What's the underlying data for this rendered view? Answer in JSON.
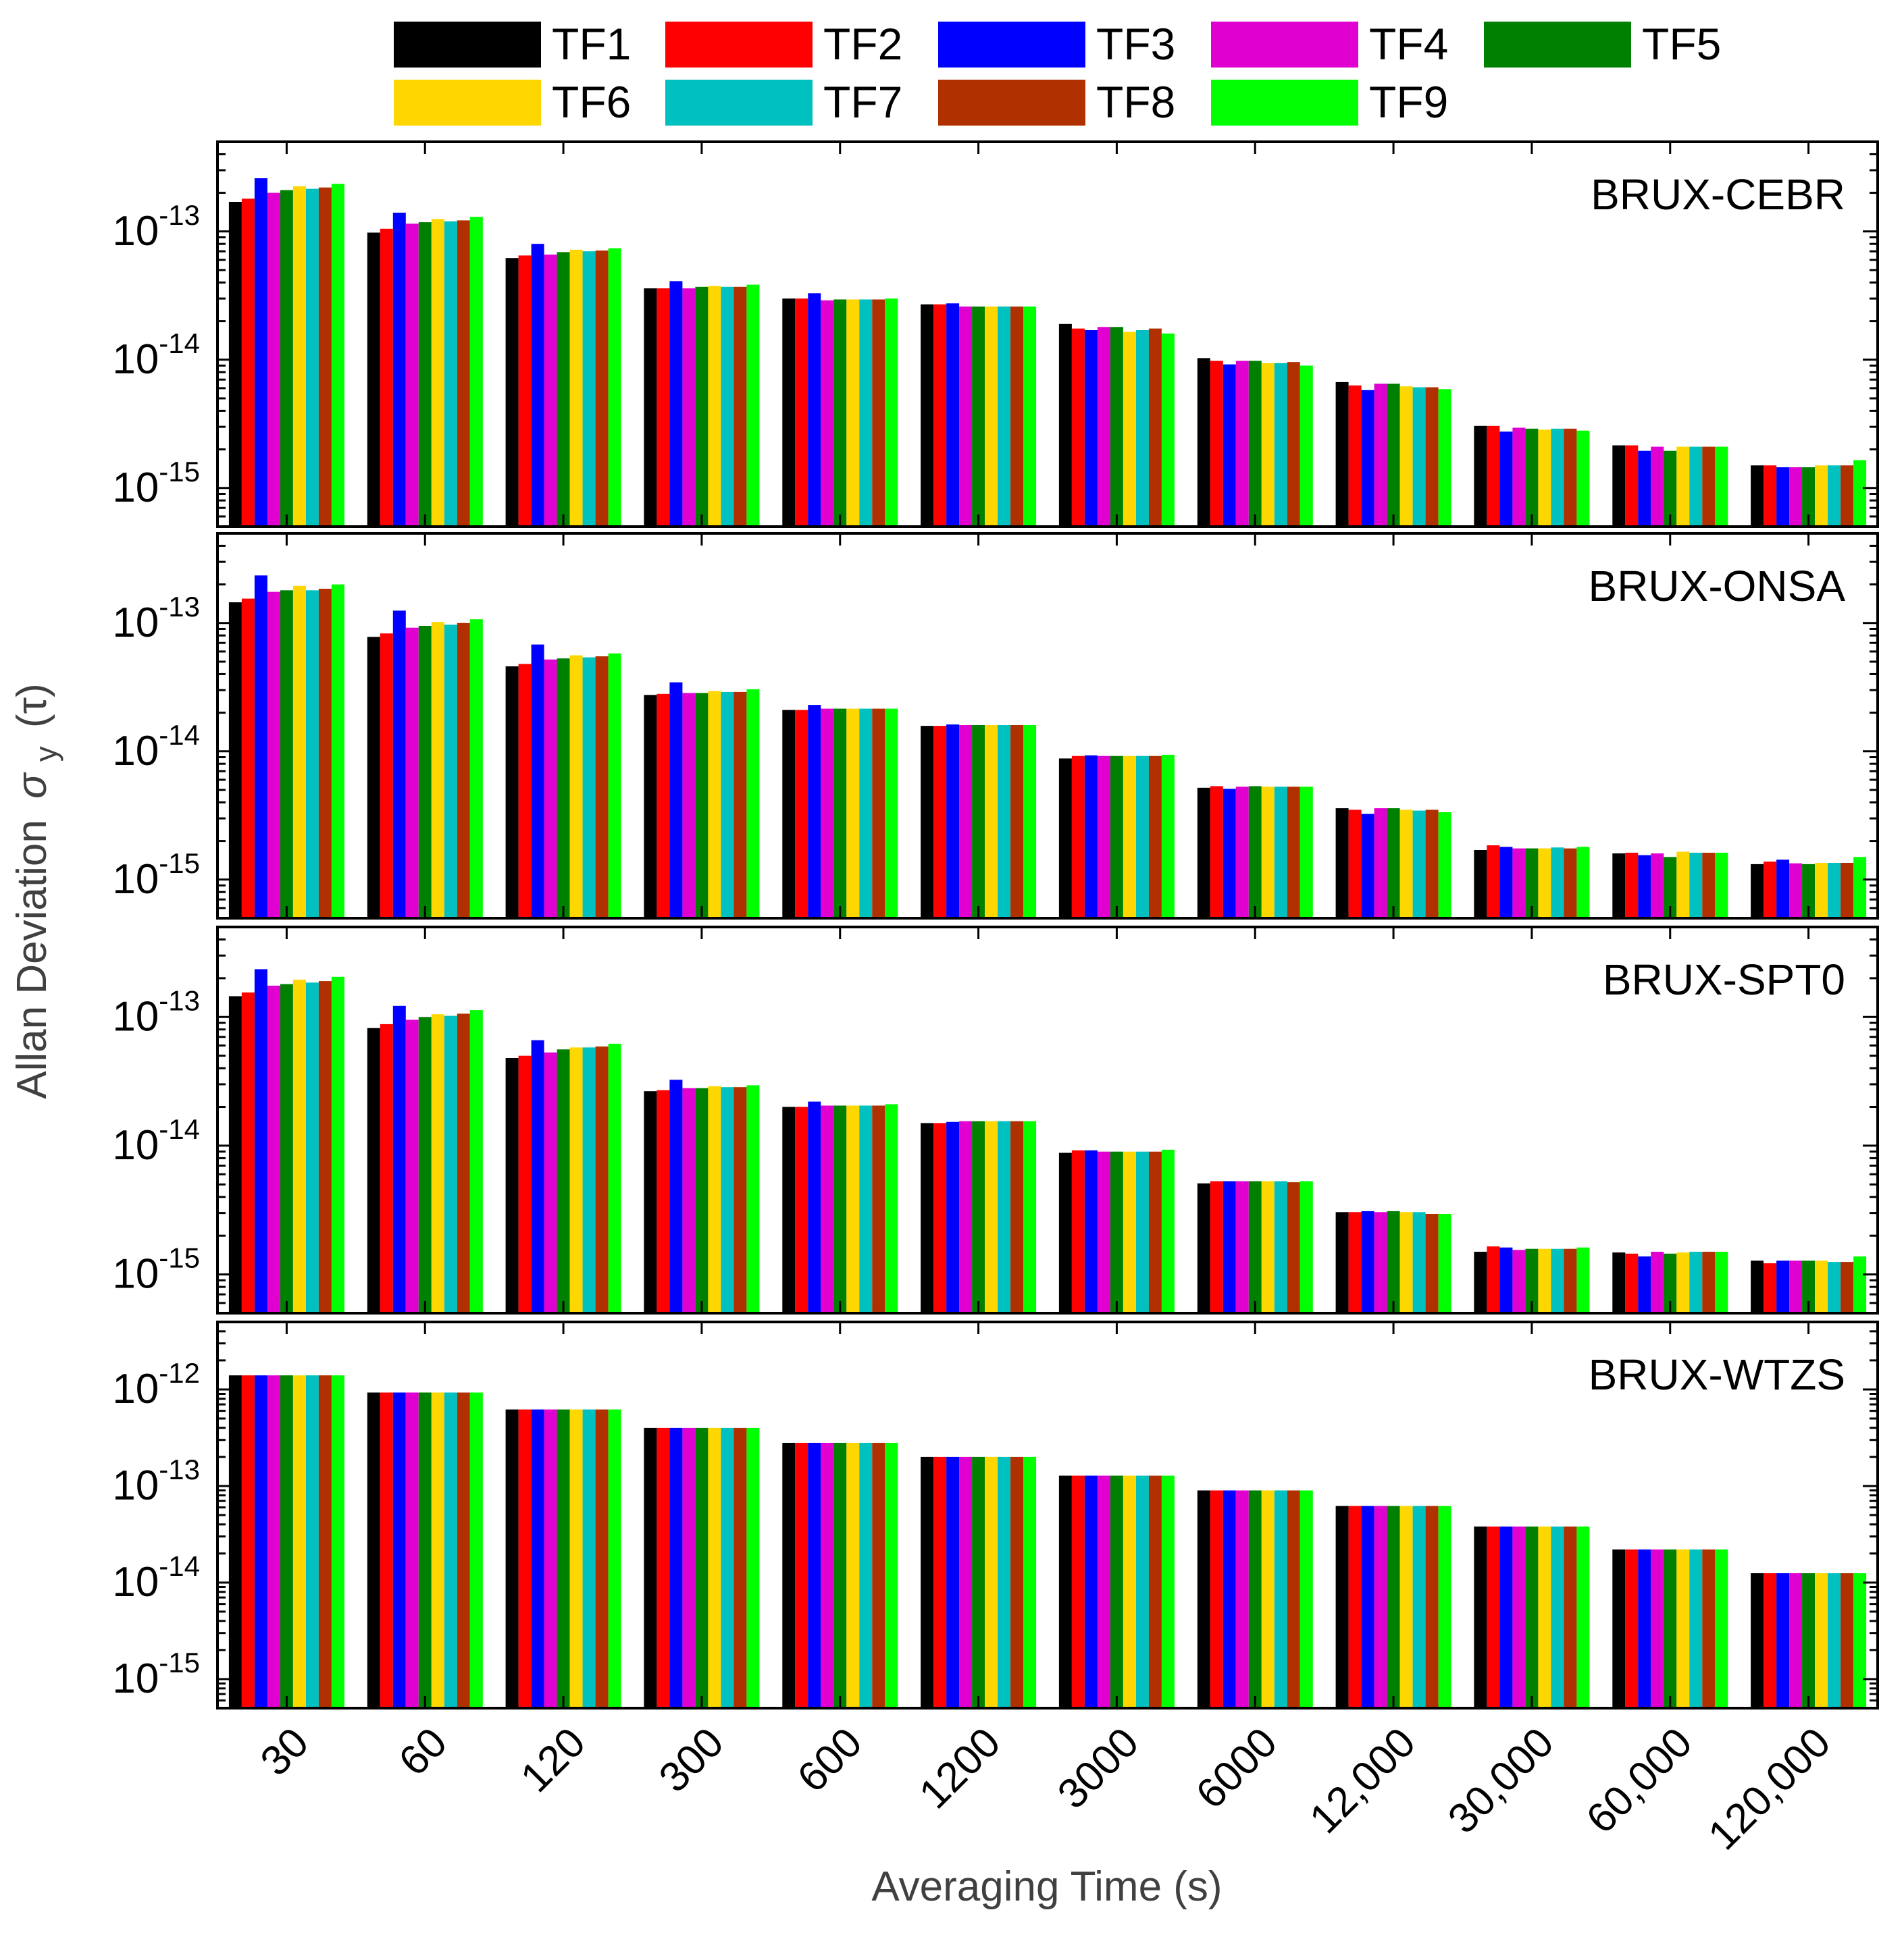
{
  "chart_data": {
    "type": "bar",
    "scale": "log",
    "xlabel": "Averaging Time (s)",
    "ylabel": "Allan Deviation",
    "ylabel_symbol": "σ",
    "ylabel_subscript": "y",
    "ylabel_arg": "(τ)",
    "categories": [
      "30",
      "60",
      "120",
      "300",
      "600",
      "1200",
      "3000",
      "6000",
      "12,000",
      "30,000",
      "60,000",
      "120,000"
    ],
    "series_names": [
      "TF1",
      "TF2",
      "TF3",
      "TF4",
      "TF5",
      "TF6",
      "TF7",
      "TF8",
      "TF9"
    ],
    "series_colors": [
      "#000000",
      "#ff0000",
      "#0000ff",
      "#e000d0",
      "#008000",
      "#ffd700",
      "#00c0c0",
      "#b03000",
      "#00ff00"
    ],
    "legend_layout": [
      [
        0,
        1,
        2,
        3,
        4
      ],
      [
        5,
        6,
        7,
        8
      ]
    ],
    "panels": [
      {
        "name": "BRUX-CEBR",
        "ylim": [
          5e-16,
          5e-13
        ],
        "ticks": [
          {
            "base": "10",
            "exp": "-13",
            "value": 1e-13
          },
          {
            "base": "10",
            "exp": "-14",
            "value": 1e-14
          },
          {
            "base": "10",
            "exp": "-15",
            "value": 1e-15
          }
        ],
        "values": [
          [
            1.7e-13,
            1.8e-13,
            2.6e-13,
            2e-13,
            2.1e-13,
            2.25e-13,
            2.15e-13,
            2.2e-13,
            2.35e-13
          ],
          [
            9.8e-14,
            1.05e-13,
            1.4e-13,
            1.15e-13,
            1.18e-13,
            1.25e-13,
            1.2e-13,
            1.22e-13,
            1.3e-13
          ],
          [
            6.2e-14,
            6.5e-14,
            8e-14,
            6.6e-14,
            6.9e-14,
            7.2e-14,
            7e-14,
            7.1e-14,
            7.4e-14
          ],
          [
            3.6e-14,
            3.6e-14,
            4.1e-14,
            3.6e-14,
            3.7e-14,
            3.75e-14,
            3.7e-14,
            3.7e-14,
            3.85e-14
          ],
          [
            3e-14,
            3e-14,
            3.3e-14,
            2.9e-14,
            2.95e-14,
            2.95e-14,
            2.95e-14,
            2.95e-14,
            3e-14
          ],
          [
            2.7e-14,
            2.7e-14,
            2.75e-14,
            2.6e-14,
            2.6e-14,
            2.6e-14,
            2.6e-14,
            2.6e-14,
            2.6e-14
          ],
          [
            1.9e-14,
            1.75e-14,
            1.7e-14,
            1.8e-14,
            1.8e-14,
            1.65e-14,
            1.7e-14,
            1.75e-14,
            1.6e-14
          ],
          [
            1.03e-14,
            9.8e-15,
            9.2e-15,
            9.8e-15,
            9.8e-15,
            9.4e-15,
            9.4e-15,
            9.6e-15,
            9e-15
          ],
          [
            6.7e-15,
            6.3e-15,
            5.8e-15,
            6.5e-15,
            6.5e-15,
            6.2e-15,
            6.1e-15,
            6.1e-15,
            5.9e-15
          ],
          [
            3.05e-15,
            3.05e-15,
            2.75e-15,
            2.95e-15,
            2.9e-15,
            2.85e-15,
            2.9e-15,
            2.9e-15,
            2.8e-15
          ],
          [
            2.15e-15,
            2.15e-15,
            1.95e-15,
            2.1e-15,
            1.95e-15,
            2.1e-15,
            2.1e-15,
            2.1e-15,
            2.1e-15
          ],
          [
            1.5e-15,
            1.5e-15,
            1.45e-15,
            1.45e-15,
            1.45e-15,
            1.5e-15,
            1.5e-15,
            1.5e-15,
            1.65e-15
          ]
        ]
      },
      {
        "name": "BRUX-ONSA",
        "ylim": [
          5e-16,
          5e-13
        ],
        "ticks": [
          {
            "base": "10",
            "exp": "-13",
            "value": 1e-13
          },
          {
            "base": "10",
            "exp": "-14",
            "value": 1e-14
          },
          {
            "base": "10",
            "exp": "-15",
            "value": 1e-15
          }
        ],
        "values": [
          [
            1.45e-13,
            1.55e-13,
            2.35e-13,
            1.75e-13,
            1.8e-13,
            1.95e-13,
            1.8e-13,
            1.85e-13,
            2e-13
          ],
          [
            7.8e-14,
            8.3e-14,
            1.25e-13,
            9.2e-14,
            9.5e-14,
            1.02e-13,
            9.7e-14,
            1e-13,
            1.07e-13
          ],
          [
            4.6e-14,
            4.8e-14,
            6.8e-14,
            5.2e-14,
            5.3e-14,
            5.6e-14,
            5.4e-14,
            5.5e-14,
            5.8e-14
          ],
          [
            2.75e-14,
            2.8e-14,
            3.45e-14,
            2.85e-14,
            2.85e-14,
            2.95e-14,
            2.9e-14,
            2.9e-14,
            3.05e-14
          ],
          [
            2.1e-14,
            2.1e-14,
            2.3e-14,
            2.15e-14,
            2.15e-14,
            2.15e-14,
            2.15e-14,
            2.15e-14,
            2.15e-14
          ],
          [
            1.58e-14,
            1.58e-14,
            1.62e-14,
            1.6e-14,
            1.6e-14,
            1.6e-14,
            1.6e-14,
            1.6e-14,
            1.6e-14
          ],
          [
            8.8e-15,
            9.2e-15,
            9.3e-15,
            9.2e-15,
            9.2e-15,
            9.2e-15,
            9.2e-15,
            9.2e-15,
            9.4e-15
          ],
          [
            5.2e-15,
            5.35e-15,
            5.1e-15,
            5.3e-15,
            5.35e-15,
            5.3e-15,
            5.3e-15,
            5.3e-15,
            5.3e-15
          ],
          [
            3.6e-15,
            3.5e-15,
            3.25e-15,
            3.6e-15,
            3.6e-15,
            3.5e-15,
            3.45e-15,
            3.5e-15,
            3.35e-15
          ],
          [
            1.7e-15,
            1.85e-15,
            1.8e-15,
            1.75e-15,
            1.75e-15,
            1.75e-15,
            1.78e-15,
            1.75e-15,
            1.8e-15
          ],
          [
            1.6e-15,
            1.62e-15,
            1.55e-15,
            1.6e-15,
            1.5e-15,
            1.65e-15,
            1.62e-15,
            1.62e-15,
            1.62e-15
          ],
          [
            1.32e-15,
            1.38e-15,
            1.43e-15,
            1.34e-15,
            1.32e-15,
            1.35e-15,
            1.35e-15,
            1.35e-15,
            1.5e-15
          ]
        ]
      },
      {
        "name": "BRUX-SPT0",
        "ylim": [
          5e-16,
          5e-13
        ],
        "ticks": [
          {
            "base": "10",
            "exp": "-13",
            "value": 1e-13
          },
          {
            "base": "10",
            "exp": "-14",
            "value": 1e-14
          },
          {
            "base": "10",
            "exp": "-15",
            "value": 1e-15
          }
        ],
        "values": [
          [
            1.45e-13,
            1.55e-13,
            2.35e-13,
            1.75e-13,
            1.8e-13,
            1.95e-13,
            1.85e-13,
            1.9e-13,
            2.05e-13
          ],
          [
            8.2e-14,
            8.8e-14,
            1.22e-13,
            9.5e-14,
            1e-13,
            1.05e-13,
            1.02e-13,
            1.06e-13,
            1.13e-13
          ],
          [
            4.8e-14,
            5e-14,
            6.6e-14,
            5.3e-14,
            5.6e-14,
            5.8e-14,
            5.8e-14,
            5.9e-14,
            6.2e-14
          ],
          [
            2.65e-14,
            2.7e-14,
            3.25e-14,
            2.8e-14,
            2.8e-14,
            2.9e-14,
            2.85e-14,
            2.85e-14,
            2.95e-14
          ],
          [
            2e-14,
            2e-14,
            2.2e-14,
            2.05e-14,
            2.05e-14,
            2.05e-14,
            2.05e-14,
            2.05e-14,
            2.1e-14
          ],
          [
            1.5e-14,
            1.5e-14,
            1.53e-14,
            1.55e-14,
            1.55e-14,
            1.55e-14,
            1.55e-14,
            1.55e-14,
            1.55e-14
          ],
          [
            8.8e-15,
            9.2e-15,
            9.2e-15,
            9e-15,
            9e-15,
            9e-15,
            9e-15,
            9e-15,
            9.3e-15
          ],
          [
            5.1e-15,
            5.3e-15,
            5.3e-15,
            5.3e-15,
            5.3e-15,
            5.3e-15,
            5.3e-15,
            5.2e-15,
            5.3e-15
          ],
          [
            3.05e-15,
            3.05e-15,
            3.1e-15,
            3.05e-15,
            3.1e-15,
            3.05e-15,
            3.05e-15,
            2.95e-15,
            2.95e-15
          ],
          [
            1.5e-15,
            1.65e-15,
            1.62e-15,
            1.55e-15,
            1.58e-15,
            1.58e-15,
            1.58e-15,
            1.58e-15,
            1.62e-15
          ],
          [
            1.48e-15,
            1.45e-15,
            1.38e-15,
            1.5e-15,
            1.45e-15,
            1.48e-15,
            1.5e-15,
            1.5e-15,
            1.5e-15
          ],
          [
            1.28e-15,
            1.22e-15,
            1.28e-15,
            1.28e-15,
            1.28e-15,
            1.28e-15,
            1.25e-15,
            1.25e-15,
            1.38e-15
          ]
        ]
      },
      {
        "name": "BRUX-WTZS",
        "ylim": [
          5e-16,
          5e-12
        ],
        "ticks": [
          {
            "base": "10",
            "exp": "-12",
            "value": 1e-12
          },
          {
            "base": "10",
            "exp": "-13",
            "value": 1e-13
          },
          {
            "base": "10",
            "exp": "-14",
            "value": 1e-14
          },
          {
            "base": "10",
            "exp": "-15",
            "value": 1e-15
          }
        ],
        "values": [
          [
            1.4e-12,
            1.4e-12,
            1.4e-12,
            1.4e-12,
            1.4e-12,
            1.4e-12,
            1.4e-12,
            1.4e-12,
            1.4e-12
          ],
          [
            9.3e-13,
            9.3e-13,
            9.3e-13,
            9.3e-13,
            9.3e-13,
            9.3e-13,
            9.3e-13,
            9.3e-13,
            9.3e-13
          ],
          [
            6.2e-13,
            6.2e-13,
            6.2e-13,
            6.2e-13,
            6.2e-13,
            6.2e-13,
            6.2e-13,
            6.2e-13,
            6.2e-13
          ],
          [
            4e-13,
            4e-13,
            4e-13,
            4e-13,
            4e-13,
            4e-13,
            4e-13,
            4e-13,
            4e-13
          ],
          [
            2.8e-13,
            2.8e-13,
            2.8e-13,
            2.8e-13,
            2.8e-13,
            2.8e-13,
            2.8e-13,
            2.8e-13,
            2.8e-13
          ],
          [
            2e-13,
            2e-13,
            2e-13,
            2e-13,
            2e-13,
            2e-13,
            2e-13,
            2e-13,
            2e-13
          ],
          [
            1.28e-13,
            1.28e-13,
            1.28e-13,
            1.28e-13,
            1.28e-13,
            1.28e-13,
            1.28e-13,
            1.28e-13,
            1.28e-13
          ],
          [
            9e-14,
            9e-14,
            9e-14,
            9e-14,
            9e-14,
            9e-14,
            9e-14,
            9e-14,
            9e-14
          ],
          [
            6.2e-14,
            6.2e-14,
            6.2e-14,
            6.2e-14,
            6.2e-14,
            6.2e-14,
            6.2e-14,
            6.2e-14,
            6.2e-14
          ],
          [
            3.8e-14,
            3.8e-14,
            3.8e-14,
            3.8e-14,
            3.8e-14,
            3.8e-14,
            3.8e-14,
            3.8e-14,
            3.8e-14
          ],
          [
            2.2e-14,
            2.2e-14,
            2.2e-14,
            2.2e-14,
            2.2e-14,
            2.2e-14,
            2.2e-14,
            2.2e-14,
            2.2e-14
          ],
          [
            1.25e-14,
            1.25e-14,
            1.25e-14,
            1.25e-14,
            1.25e-14,
            1.25e-14,
            1.25e-14,
            1.25e-14,
            1.25e-14
          ]
        ]
      }
    ]
  }
}
